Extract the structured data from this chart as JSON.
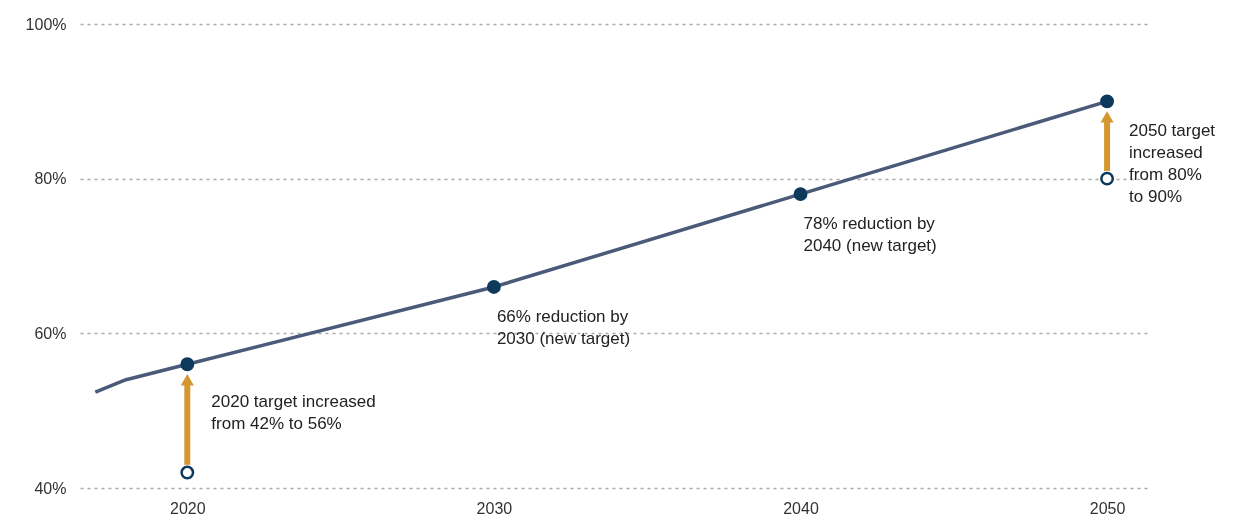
{
  "chart_data": {
    "type": "line",
    "xlim": [
      2016.5,
      2051.4
    ],
    "xticks": [
      2020,
      2030,
      2040,
      2050
    ],
    "ylim": [
      40,
      100
    ],
    "yticks": [
      {
        "value": 40,
        "label": "40%"
      },
      {
        "value": 60,
        "label": "60%"
      },
      {
        "value": 80,
        "label": "80%"
      },
      {
        "value": 100,
        "label": "100%"
      }
    ],
    "grid": "y",
    "series": [
      {
        "color": "#4a5a78",
        "marker": "none",
        "x": [
          2017,
          2018,
          2020,
          2030,
          2040,
          2050
        ],
        "values": [
          52.4,
          54,
          56,
          66,
          78,
          90
        ]
      },
      {
        "type": "scatter",
        "marker": "circle",
        "color": "#0d3a5c",
        "x": [
          2020,
          2030,
          2040,
          2050
        ],
        "values": [
          56,
          66,
          78,
          90
        ]
      },
      {
        "type": "scatter",
        "marker": "circle",
        "color": "#ffffff",
        "x": [
          2020,
          2050
        ],
        "values": [
          42,
          80
        ]
      }
    ],
    "annotations": [
      {
        "text": "2020 target increased\nfrom 42% to 56%",
        "x": 2020,
        "y": 56
      },
      {
        "text": "66% reduction by\n2030 (new target)",
        "x": 2030,
        "y": 66
      },
      {
        "text": "78% reduction by\n2040 (new target)",
        "x": 2040,
        "y": 78
      },
      {
        "text": "2050 target\nincreased\nfrom 80%\nto 90%",
        "x": 2050,
        "y": 90
      }
    ]
  }
}
